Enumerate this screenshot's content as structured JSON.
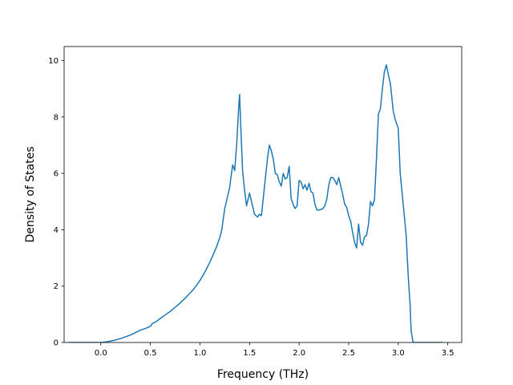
{
  "chart_data": {
    "type": "line",
    "title": "",
    "xlabel": "Frequency (THz)",
    "ylabel": "Density of States",
    "xlim": [
      -0.37,
      3.64
    ],
    "ylim": [
      0,
      10.5
    ],
    "xticks": [
      0.0,
      0.5,
      1.0,
      1.5,
      2.0,
      2.5,
      3.0,
      3.5
    ],
    "xtick_labels": [
      "0.0",
      "0.5",
      "1.0",
      "1.5",
      "2.0",
      "2.5",
      "3.0",
      "3.5"
    ],
    "yticks": [
      0,
      2,
      4,
      6,
      8,
      10
    ],
    "ytick_labels": [
      "0",
      "2",
      "4",
      "6",
      "8",
      "10"
    ],
    "grid": false,
    "legend": null,
    "series": [
      {
        "color": "#1f77b4",
        "x": [
          -0.33,
          -0.2,
          -0.1,
          0.0,
          0.05,
          0.1,
          0.15,
          0.2,
          0.25,
          0.3,
          0.35,
          0.4,
          0.45,
          0.5,
          0.52,
          0.55,
          0.6,
          0.65,
          0.7,
          0.75,
          0.8,
          0.85,
          0.9,
          0.95,
          1.0,
          1.05,
          1.1,
          1.15,
          1.17,
          1.2,
          1.22,
          1.25,
          1.28,
          1.3,
          1.31,
          1.33,
          1.35,
          1.37,
          1.39,
          1.4,
          1.41,
          1.43,
          1.45,
          1.47,
          1.5,
          1.52,
          1.55,
          1.58,
          1.6,
          1.62,
          1.65,
          1.68,
          1.7,
          1.72,
          1.74,
          1.76,
          1.78,
          1.8,
          1.82,
          1.84,
          1.86,
          1.88,
          1.9,
          1.92,
          1.94,
          1.96,
          1.98,
          2.0,
          2.02,
          2.04,
          2.06,
          2.08,
          2.1,
          2.12,
          2.14,
          2.16,
          2.18,
          2.2,
          2.22,
          2.24,
          2.26,
          2.28,
          2.3,
          2.32,
          2.34,
          2.36,
          2.38,
          2.4,
          2.42,
          2.44,
          2.46,
          2.48,
          2.5,
          2.52,
          2.54,
          2.56,
          2.58,
          2.6,
          2.62,
          2.64,
          2.66,
          2.68,
          2.7,
          2.72,
          2.74,
          2.76,
          2.78,
          2.8,
          2.82,
          2.84,
          2.86,
          2.88,
          2.9,
          2.92,
          2.95,
          2.97,
          3.0,
          3.02,
          3.05,
          3.08,
          3.1,
          3.12,
          3.13,
          3.15,
          3.2,
          3.3,
          3.45
        ],
        "y": [
          0.0,
          0.0,
          0.0,
          0.0,
          0.02,
          0.05,
          0.09,
          0.14,
          0.2,
          0.27,
          0.35,
          0.44,
          0.5,
          0.57,
          0.68,
          0.72,
          0.85,
          0.98,
          1.1,
          1.25,
          1.4,
          1.57,
          1.75,
          1.95,
          2.2,
          2.5,
          2.85,
          3.25,
          3.42,
          3.72,
          4.0,
          4.75,
          5.2,
          5.5,
          5.8,
          6.3,
          6.1,
          7.0,
          8.3,
          8.8,
          7.8,
          6.1,
          5.4,
          4.85,
          5.3,
          5.0,
          4.55,
          4.45,
          4.55,
          4.5,
          5.5,
          6.5,
          7.0,
          6.8,
          6.5,
          6.0,
          5.95,
          5.7,
          5.55,
          6.0,
          5.8,
          5.85,
          6.25,
          5.1,
          4.9,
          4.75,
          4.85,
          5.75,
          5.7,
          5.45,
          5.6,
          5.4,
          5.65,
          5.35,
          5.3,
          4.9,
          4.7,
          4.7,
          4.72,
          4.75,
          4.85,
          5.1,
          5.6,
          5.85,
          5.85,
          5.75,
          5.6,
          5.85,
          5.55,
          5.25,
          4.9,
          4.8,
          4.5,
          4.3,
          3.9,
          3.55,
          3.35,
          4.2,
          3.55,
          3.45,
          3.75,
          3.8,
          4.2,
          5.0,
          4.85,
          5.05,
          6.5,
          8.1,
          8.3,
          9.0,
          9.6,
          9.85,
          9.5,
          9.2,
          8.2,
          7.9,
          7.6,
          6.0,
          4.9,
          3.8,
          2.4,
          1.3,
          0.4,
          0.0,
          0.0,
          0.0,
          0.0
        ]
      }
    ]
  }
}
